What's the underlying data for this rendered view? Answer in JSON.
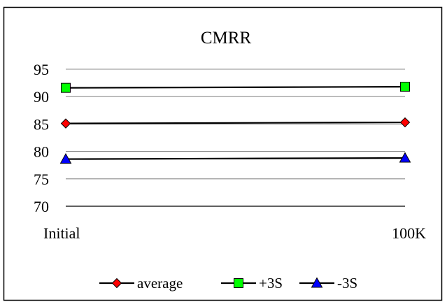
{
  "chart_data": {
    "type": "line",
    "title": "CMRR",
    "xlabel": "",
    "ylabel": "",
    "categories": [
      "Initial",
      "100K"
    ],
    "ylim": [
      70,
      95
    ],
    "yticks": [
      70,
      75,
      80,
      85,
      90,
      95
    ],
    "grid": true,
    "legend_position": "bottom",
    "series": [
      {
        "name": "average",
        "values": [
          85.1,
          85.3
        ],
        "marker": "diamond",
        "marker_color": "#ff0000"
      },
      {
        "name": "+3S",
        "values": [
          91.6,
          91.8
        ],
        "marker": "square",
        "marker_color": "#00ff00"
      },
      {
        "name": "-3S",
        "values": [
          78.6,
          78.8
        ],
        "marker": "triangle",
        "marker_color": "#0000ff"
      }
    ]
  }
}
